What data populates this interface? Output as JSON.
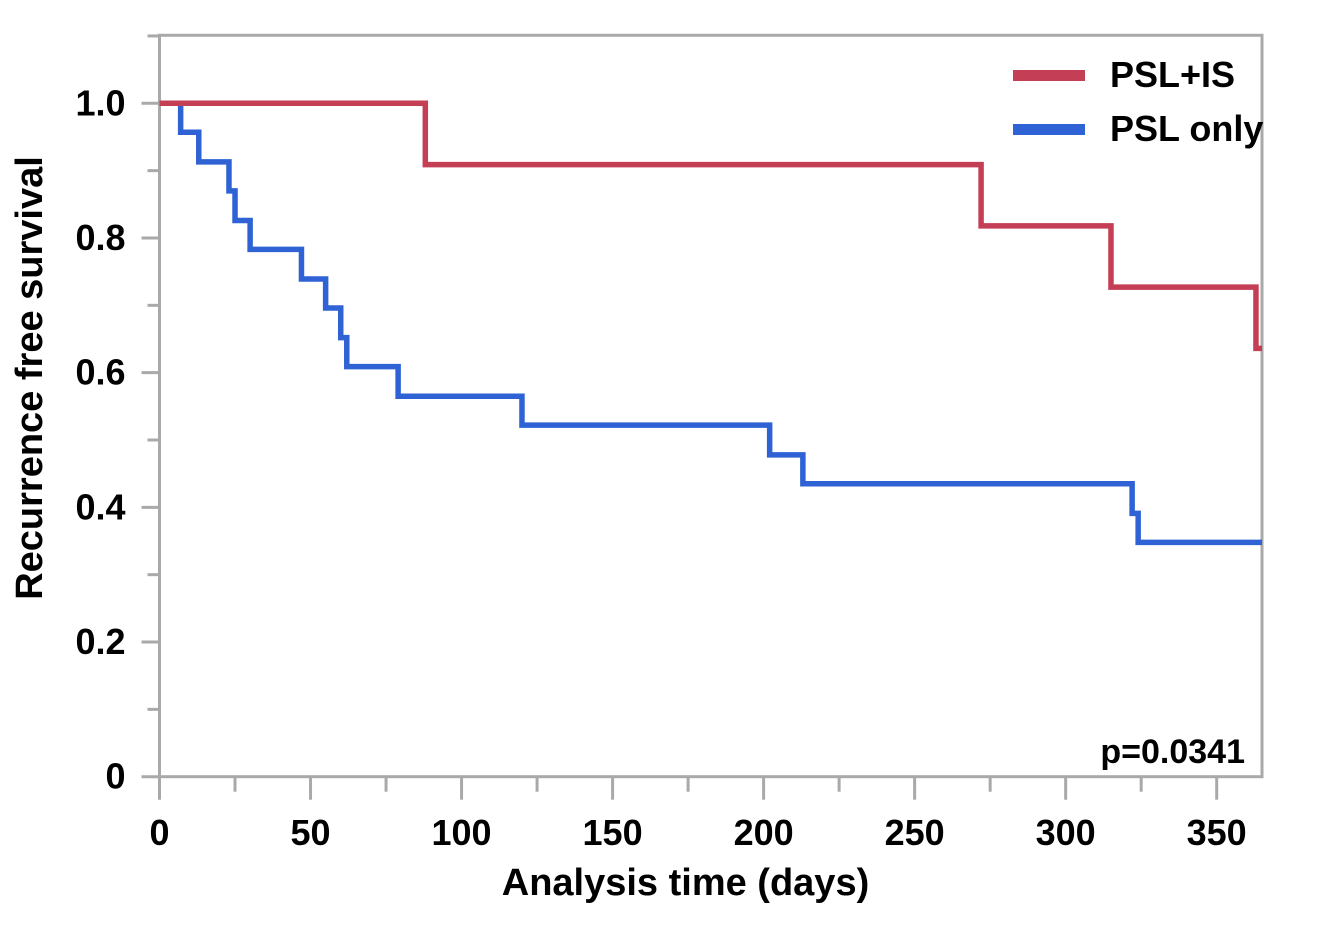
{
  "chart_data": {
    "type": "line",
    "subtype": "kaplan-meier-step",
    "title": "",
    "xlabel": "Analysis time (days)",
    "ylabel": "Recurrence free survival",
    "p_value_label": "p=0.0341",
    "xlim": [
      0,
      365
    ],
    "ylim": [
      0,
      1.101
    ],
    "grid": false,
    "legend_position": "top-right-inside",
    "axis_color": "#a9a9a9",
    "text_color": "#000000",
    "background_color": "#ffffff",
    "xticks": {
      "major": [
        0,
        50,
        100,
        150,
        200,
        250,
        300,
        350
      ],
      "labels": [
        "0",
        "50",
        "100",
        "150",
        "200",
        "250",
        "300",
        "350"
      ],
      "minor": [
        25,
        75,
        125,
        175,
        225,
        275,
        325
      ]
    },
    "yticks": {
      "major": [
        0,
        0.2,
        0.4,
        0.6,
        0.8,
        1.0
      ],
      "labels": [
        "0",
        "0.2",
        "0.4",
        "0.6",
        "0.8",
        "1.0"
      ],
      "minor": [
        0.1,
        0.3,
        0.5,
        0.7,
        0.9,
        1.1
      ]
    },
    "series": [
      {
        "name": "PSL+IS",
        "color": "#c43f56",
        "start_survival": 1.0,
        "end_time": 365,
        "drops": [
          {
            "t": 88,
            "s": 0.909
          },
          {
            "t": 272,
            "s": 0.818
          },
          {
            "t": 315,
            "s": 0.727
          },
          {
            "t": 363,
            "s": 0.636
          }
        ]
      },
      {
        "name": "PSL only",
        "color": "#2f62d4",
        "start_survival": 1.0,
        "end_time": 365,
        "drops": [
          {
            "t": 7,
            "s": 0.957
          },
          {
            "t": 13,
            "s": 0.913
          },
          {
            "t": 23,
            "s": 0.87
          },
          {
            "t": 25,
            "s": 0.826
          },
          {
            "t": 30,
            "s": 0.783
          },
          {
            "t": 47,
            "s": 0.739
          },
          {
            "t": 55,
            "s": 0.696
          },
          {
            "t": 60,
            "s": 0.652
          },
          {
            "t": 62,
            "s": 0.609
          },
          {
            "t": 79,
            "s": 0.565
          },
          {
            "t": 120,
            "s": 0.522
          },
          {
            "t": 202,
            "s": 0.478
          },
          {
            "t": 213,
            "s": 0.435
          },
          {
            "t": 322,
            "s": 0.391
          },
          {
            "t": 324,
            "s": 0.348
          }
        ]
      }
    ]
  }
}
